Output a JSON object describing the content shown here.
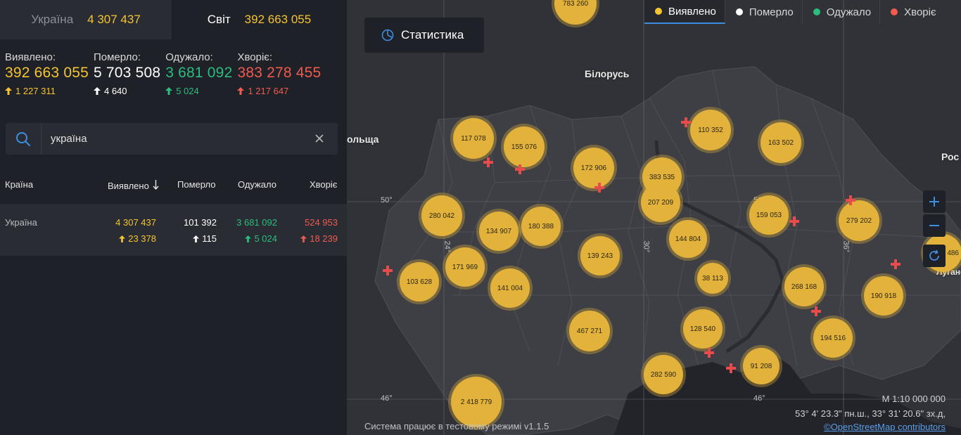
{
  "tabs": {
    "ukraine": {
      "label": "Україна",
      "value": "4 307 437"
    },
    "world": {
      "label": "Світ",
      "value": "392 663 055"
    }
  },
  "summary": {
    "detected": {
      "label": "Виявлено:",
      "value": "392 663 055",
      "delta": "1 227 311"
    },
    "died": {
      "label": "Померло:",
      "value": "5 703 508",
      "delta": "4 640"
    },
    "recovered": {
      "label": "Одужало:",
      "value": "3 681 092",
      "delta": "5 024"
    },
    "sick": {
      "label": "Хворіє:",
      "value": "383 278 455",
      "delta": "1 217 647"
    }
  },
  "search": {
    "value": "україна",
    "placeholder": ""
  },
  "table": {
    "headers": {
      "country": "Країна",
      "detected": "Виявлено",
      "died": "Померло",
      "recovered": "Одужало",
      "sick": "Хворіє"
    },
    "rows": [
      {
        "country": "Україна",
        "detected": "4 307 437",
        "detected_delta": "23 378",
        "died": "101 392",
        "died_delta": "115",
        "recovered": "3 681 092",
        "recovered_delta": "5 024",
        "sick": "524 953",
        "sick_delta": "18 239"
      }
    ]
  },
  "map": {
    "stat_button": "Статистика",
    "legend": {
      "detected": "Виявлено",
      "died": "Померло",
      "recovered": "Одужало",
      "sick": "Хворіє"
    },
    "labels": {
      "belarus": "Білорусь",
      "poland": "ольща",
      "russia": "Рос",
      "luhansk": "Луганс"
    },
    "grid": {
      "lat50_left": "50°",
      "lat50_right": "50°",
      "lat46_left": "46°",
      "lat46_right": "46°",
      "lon24": "24°",
      "lon30": "30°",
      "lon36": "36°"
    },
    "clusters": [
      "783 260",
      "117 078",
      "155 076",
      "172 906",
      "383 535",
      "110 352",
      "163 502",
      "280 042",
      "134 907",
      "180 388",
      "207 209",
      "159 053",
      "279 202",
      "144 804",
      "139 243",
      "171 969",
      "103 628",
      "141 004",
      "38 113",
      "268 168",
      "190 918",
      "467 271",
      "128 540",
      "194 516",
      "91 208",
      "282 590",
      "2 418 779",
      "486"
    ],
    "scale": "М 1:10 000 000",
    "coords": "53° 4' 23.3\" пн.ш., 33° 31' 20.6\" зх.д,",
    "osm": "©OpenStreetMap contributors",
    "footer_note": "Система працює в тестовому режимі v1.1.5"
  },
  "colors": {
    "detected": "#f5c433",
    "died": "#ffffff",
    "recovered": "#2bbd7e",
    "sick": "#f05a4f",
    "accent": "#3d8de0"
  }
}
